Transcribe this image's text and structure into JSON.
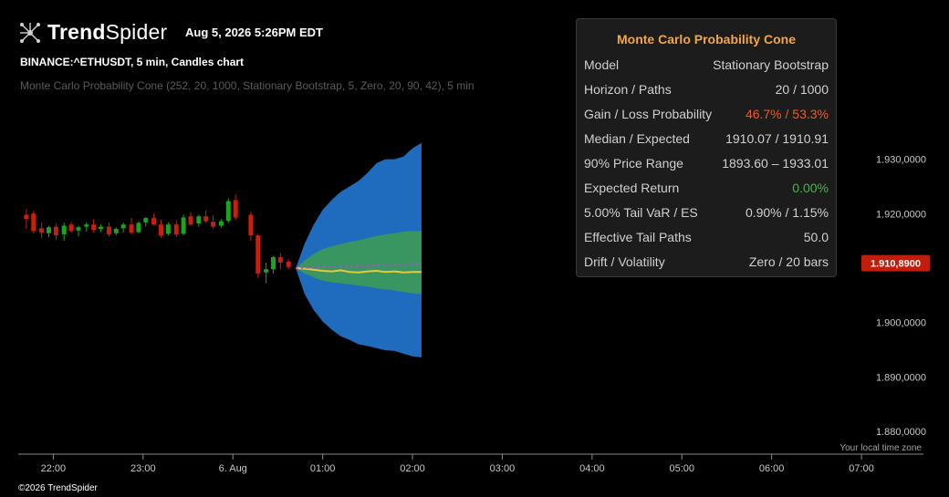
{
  "brand": {
    "name_bold": "Trend",
    "name_light": "Spider"
  },
  "header": {
    "timestamp": "Aug 5, 2026 5:26PM EDT",
    "symbol_line": "BINANCE:^ETHUSDT, 5 min, Candles chart",
    "indicator_line": "Monte Carlo Probability Cone (252, 20, 1000, Stationary Bootstrap, 5, Zero, 20, 90, 42), 5 min"
  },
  "panel": {
    "title": "Monte Carlo Probability Cone",
    "rows": [
      {
        "label": "Model",
        "value": "Stationary Bootstrap",
        "color": "#d0d0d0"
      },
      {
        "label": "Horizon / Paths",
        "value": "20 / 1000",
        "color": "#d0d0d0"
      },
      {
        "label": "Gain / Loss Probability",
        "value": "46.7% / 53.3%",
        "color": "#f05a28"
      },
      {
        "label": "Median / Expected",
        "value": "1910.07 / 1910.91",
        "color": "#d0d0d0"
      },
      {
        "label": "90% Price Range",
        "value": "1893.60 – 1933.01",
        "color": "#d0d0d0"
      },
      {
        "label": "Expected Return",
        "value": "0.00%",
        "color": "#4caf50"
      },
      {
        "label": "5.00% Tail VaR / ES",
        "value": "0.90% / 1.15%",
        "color": "#d0d0d0"
      },
      {
        "label": "Effective Tail Paths",
        "value": "50.0",
        "color": "#d0d0d0"
      },
      {
        "label": "Drift / Volatility",
        "value": "Zero / 20 bars",
        "color": "#d0d0d0"
      }
    ]
  },
  "footer": {
    "timezone": "Your local time zone",
    "copyright": "©2026 TrendSpider"
  },
  "chart_data": {
    "type": "candlestick",
    "y_ticks": [
      "1.930,0000",
      "1.920,0000",
      "1.900,0000",
      "1.890,0000",
      "1.880,0000"
    ],
    "y_tick_values": [
      1930,
      1920,
      1900,
      1890,
      1880
    ],
    "ylim": [
      1876,
      1945
    ],
    "x_ticks": [
      "22:00",
      "23:00",
      "6. Aug",
      "01:00",
      "02:00",
      "03:00",
      "04:00",
      "05:00",
      "06:00",
      "07:00"
    ],
    "x_tick_hours": [
      22,
      23,
      24,
      25,
      26,
      27,
      28,
      29,
      30,
      31
    ],
    "xlim_hours": [
      21.63,
      31.67
    ],
    "last_price": {
      "label": "1.910,8900",
      "value": 1910.89,
      "color": "#c01e0c"
    },
    "colors": {
      "up": "#1aa51a",
      "down": "#c8200c",
      "outer_band": "#1f6bbd",
      "inner_band": "#3a9660",
      "median": "#e8c83a",
      "expected": "#b04ad8",
      "axis": "#888888",
      "tick_text": "#c8c8c8"
    },
    "candles": [
      {
        "t": 21.7,
        "o": 1919.8,
        "h": 1920.8,
        "l": 1917.2,
        "c": 1919.0
      },
      {
        "t": 21.78,
        "o": 1920.0,
        "h": 1920.5,
        "l": 1916.4,
        "c": 1916.8
      },
      {
        "t": 21.87,
        "o": 1917.3,
        "h": 1918.4,
        "l": 1915.5,
        "c": 1916.5
      },
      {
        "t": 21.95,
        "o": 1916.4,
        "h": 1917.8,
        "l": 1915.7,
        "c": 1917.5
      },
      {
        "t": 22.03,
        "o": 1917.6,
        "h": 1918.2,
        "l": 1915.2,
        "c": 1916.0
      },
      {
        "t": 22.12,
        "o": 1916.2,
        "h": 1918.3,
        "l": 1915.0,
        "c": 1917.8
      },
      {
        "t": 22.2,
        "o": 1918.0,
        "h": 1918.4,
        "l": 1916.5,
        "c": 1916.8
      },
      {
        "t": 22.28,
        "o": 1916.9,
        "h": 1917.8,
        "l": 1915.8,
        "c": 1917.5
      },
      {
        "t": 22.37,
        "o": 1917.6,
        "h": 1918.4,
        "l": 1916.7,
        "c": 1918.0
      },
      {
        "t": 22.45,
        "o": 1918.0,
        "h": 1919.0,
        "l": 1916.5,
        "c": 1917.0
      },
      {
        "t": 22.53,
        "o": 1917.2,
        "h": 1918.0,
        "l": 1916.6,
        "c": 1917.6
      },
      {
        "t": 22.62,
        "o": 1917.6,
        "h": 1918.4,
        "l": 1915.8,
        "c": 1916.2
      },
      {
        "t": 22.7,
        "o": 1916.4,
        "h": 1917.5,
        "l": 1916.0,
        "c": 1917.2
      },
      {
        "t": 22.78,
        "o": 1917.3,
        "h": 1918.4,
        "l": 1916.5,
        "c": 1918.0
      },
      {
        "t": 22.87,
        "o": 1918.0,
        "h": 1919.2,
        "l": 1916.2,
        "c": 1916.5
      },
      {
        "t": 22.95,
        "o": 1916.6,
        "h": 1918.6,
        "l": 1916.4,
        "c": 1918.3
      },
      {
        "t": 23.03,
        "o": 1918.4,
        "h": 1919.4,
        "l": 1917.6,
        "c": 1919.2
      },
      {
        "t": 23.12,
        "o": 1919.2,
        "h": 1920.0,
        "l": 1917.8,
        "c": 1918.0
      },
      {
        "t": 23.2,
        "o": 1918.0,
        "h": 1918.9,
        "l": 1915.6,
        "c": 1916.0
      },
      {
        "t": 23.28,
        "o": 1916.3,
        "h": 1918.4,
        "l": 1916.0,
        "c": 1918.0
      },
      {
        "t": 23.37,
        "o": 1918.0,
        "h": 1918.8,
        "l": 1915.7,
        "c": 1916.2
      },
      {
        "t": 23.45,
        "o": 1916.3,
        "h": 1919.8,
        "l": 1916.0,
        "c": 1919.3
      },
      {
        "t": 23.53,
        "o": 1919.5,
        "h": 1920.3,
        "l": 1917.8,
        "c": 1918.0
      },
      {
        "t": 23.62,
        "o": 1918.2,
        "h": 1919.8,
        "l": 1917.6,
        "c": 1919.5
      },
      {
        "t": 23.7,
        "o": 1919.5,
        "h": 1920.6,
        "l": 1918.3,
        "c": 1918.6
      },
      {
        "t": 23.78,
        "o": 1918.5,
        "h": 1919.7,
        "l": 1917.3,
        "c": 1917.6
      },
      {
        "t": 23.87,
        "o": 1917.8,
        "h": 1919.0,
        "l": 1917.4,
        "c": 1918.6
      },
      {
        "t": 23.95,
        "o": 1918.7,
        "h": 1922.8,
        "l": 1918.3,
        "c": 1922.3
      },
      {
        "t": 24.03,
        "o": 1922.5,
        "h": 1923.5,
        "l": 1918.8,
        "c": 1919.3
      },
      {
        "t": 24.2,
        "o": 1919.8,
        "h": 1920.3,
        "l": 1915.0,
        "c": 1916.0
      },
      {
        "t": 24.28,
        "o": 1916.0,
        "h": 1916.3,
        "l": 1908.2,
        "c": 1909.0
      },
      {
        "t": 24.37,
        "o": 1909.2,
        "h": 1911.0,
        "l": 1907.2,
        "c": 1909.8
      },
      {
        "t": 24.45,
        "o": 1909.8,
        "h": 1912.2,
        "l": 1909.0,
        "c": 1912.0
      },
      {
        "t": 24.53,
        "o": 1912.0,
        "h": 1912.8,
        "l": 1909.8,
        "c": 1911.0
      },
      {
        "t": 24.62,
        "o": 1911.2,
        "h": 1911.6,
        "l": 1909.8,
        "c": 1910.2
      }
    ],
    "cone": {
      "t": [
        24.7,
        24.8,
        24.9,
        25.0,
        25.1,
        25.2,
        25.3,
        25.4,
        25.5,
        25.6,
        25.7,
        25.8,
        25.9,
        26.0,
        26.1
      ],
      "p95": [
        1910.0,
        1914.5,
        1918.0,
        1920.7,
        1922.5,
        1924.0,
        1925.0,
        1926.0,
        1927.5,
        1929.3,
        1930.0,
        1930.0,
        1930.5,
        1932.0,
        1933.0
      ],
      "p75": [
        1910.0,
        1911.4,
        1912.6,
        1913.5,
        1914.0,
        1914.4,
        1914.8,
        1915.1,
        1915.5,
        1915.9,
        1916.2,
        1916.4,
        1916.7,
        1916.8,
        1916.8
      ],
      "p25": [
        1910.0,
        1909.0,
        1908.3,
        1907.7,
        1907.4,
        1907.2,
        1907.0,
        1906.8,
        1906.6,
        1906.3,
        1906.1,
        1905.9,
        1905.6,
        1905.4,
        1905.2
      ],
      "p05": [
        1910.0,
        1905.2,
        1902.3,
        1900.2,
        1898.7,
        1897.5,
        1896.8,
        1896.0,
        1895.7,
        1895.3,
        1894.9,
        1894.8,
        1894.3,
        1893.8,
        1893.6
      ],
      "median": [
        1910.0,
        1909.9,
        1909.7,
        1909.5,
        1909.4,
        1909.6,
        1909.3,
        1909.2,
        1909.4,
        1909.5,
        1909.3,
        1909.4,
        1909.2,
        1909.3,
        1909.3
      ],
      "expected": [
        1910.0,
        1910.1,
        1910.1,
        1910.2,
        1910.2,
        1910.3,
        1910.3,
        1910.4,
        1910.4,
        1910.5,
        1910.5,
        1910.6,
        1910.6,
        1910.7,
        1910.7
      ]
    }
  }
}
